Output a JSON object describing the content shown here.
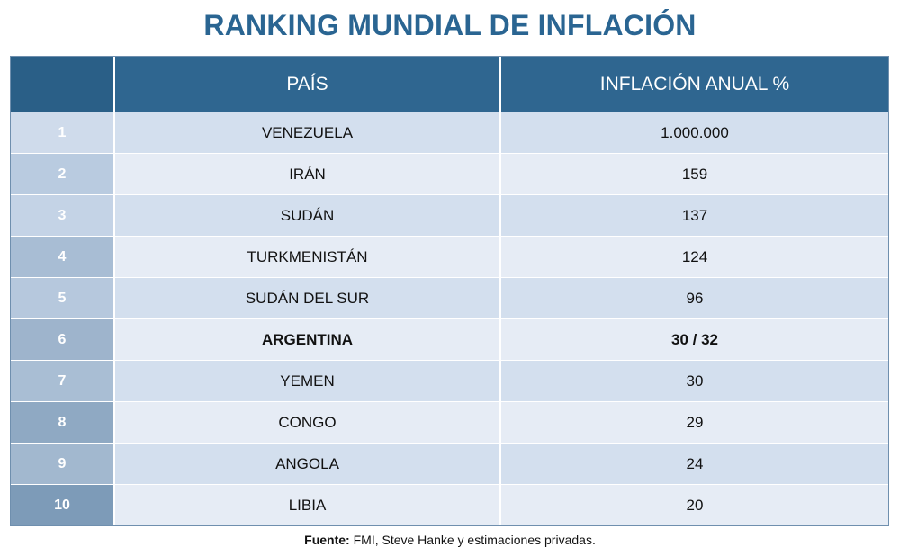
{
  "chart_data": {
    "type": "table",
    "title": "RANKING MUNDIAL DE INFLACIÓN",
    "columns": [
      "",
      "PAÍS",
      "INFLACIÓN ANUAL %"
    ],
    "rows": [
      {
        "rank": "1",
        "country": "VENEZUELA",
        "value": "1.000.000",
        "rank_color": "#cfdbeb"
      },
      {
        "rank": "2",
        "country": "IRÁN",
        "value": "159",
        "rank_color": "#b9cbe0"
      },
      {
        "rank": "3",
        "country": "SUDÁN",
        "value": "137",
        "rank_color": "#c4d3e6"
      },
      {
        "rank": "4",
        "country": "TURKMENISTÁN",
        "value": "124",
        "rank_color": "#a8bdd4"
      },
      {
        "rank": "5",
        "country": "SUDÁN DEL SUR",
        "value": "96",
        "rank_color": "#b6c8dd"
      },
      {
        "rank": "6",
        "country": "ARGENTINA",
        "value": "30 / 32",
        "rank_color": "#9eb4cc",
        "highlight": true
      },
      {
        "rank": "7",
        "country": "YEMEN",
        "value": "30",
        "rank_color": "#a9bed4"
      },
      {
        "rank": "8",
        "country": "CONGO",
        "value": "29",
        "rank_color": "#8fa9c3"
      },
      {
        "rank": "9",
        "country": "ANGOLA",
        "value": "24",
        "rank_color": "#a2b8cf"
      },
      {
        "rank": "10",
        "country": "LIBIA",
        "value": "20",
        "rank_color": "#7d9bb8"
      }
    ],
    "source_label": "Fuente:",
    "source_text": "FMI, Steve Hanke y estimaciones privadas."
  },
  "colors": {
    "title": "#2a6592",
    "header_bg": "#2f6690",
    "row_odd": "#d3dfee",
    "row_even": "#e6ecf5"
  }
}
